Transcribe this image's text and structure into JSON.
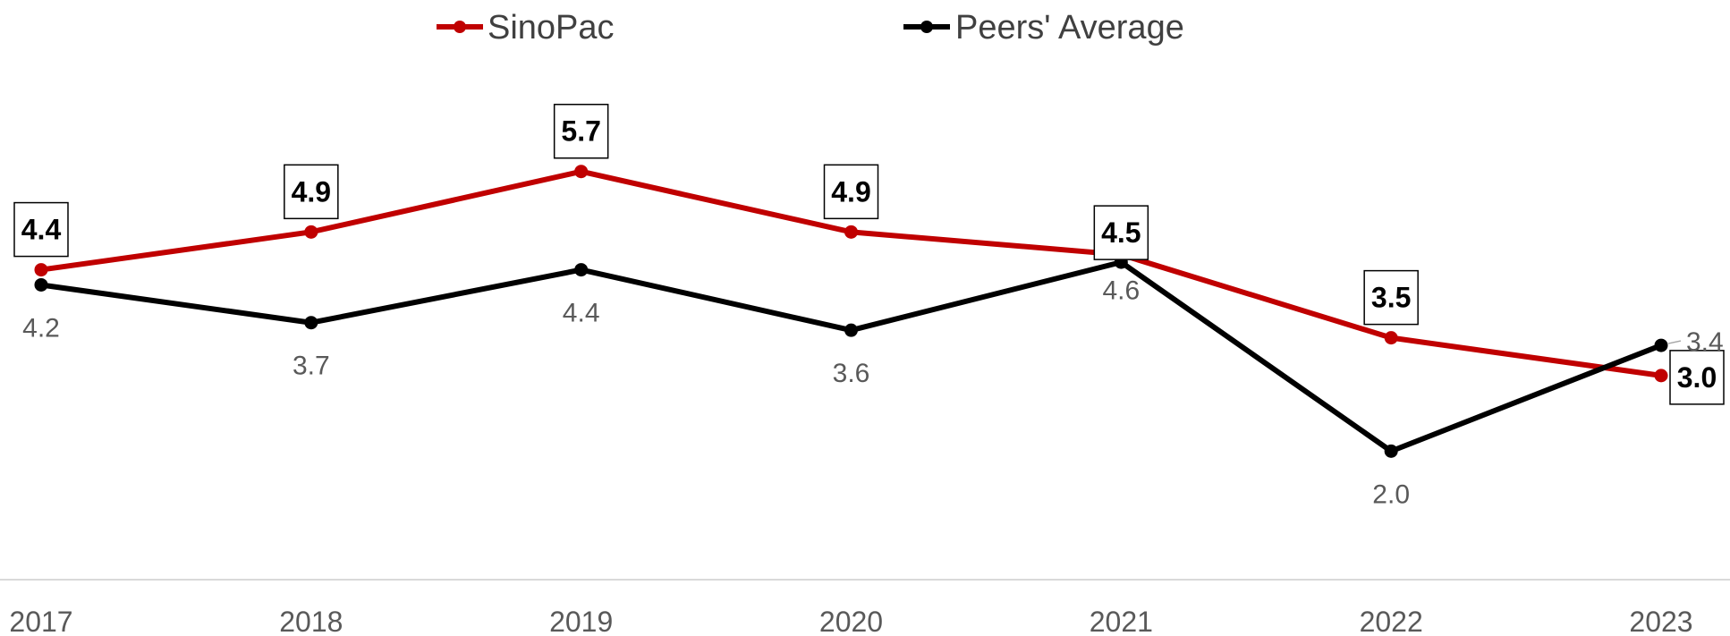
{
  "chart_data": {
    "type": "line",
    "title": "",
    "xlabel": "",
    "ylabel": "",
    "categories": [
      "2017",
      "2018",
      "2019",
      "2020",
      "2021",
      "2022",
      "2023"
    ],
    "series": [
      {
        "name": "SinoPac",
        "color": "#c00000",
        "values": [
          4.4,
          4.9,
          5.7,
          4.9,
          4.6,
          3.5,
          3.0
        ],
        "data_labels": [
          "4.4",
          "4.9",
          "5.7",
          "4.9",
          "4.6",
          "3.5",
          "3.0"
        ]
      },
      {
        "name": "Peers' Average",
        "color": "#000000",
        "values": [
          4.2,
          3.7,
          4.4,
          3.6,
          4.5,
          2.0,
          3.4
        ],
        "data_labels": [
          "4.2",
          "3.7",
          "4.4",
          "3.6",
          "4.5",
          "2.0",
          "3.4"
        ]
      }
    ],
    "ylim": [
      0.3,
      7.2
    ],
    "grid": false,
    "legend_position": "top-center"
  }
}
